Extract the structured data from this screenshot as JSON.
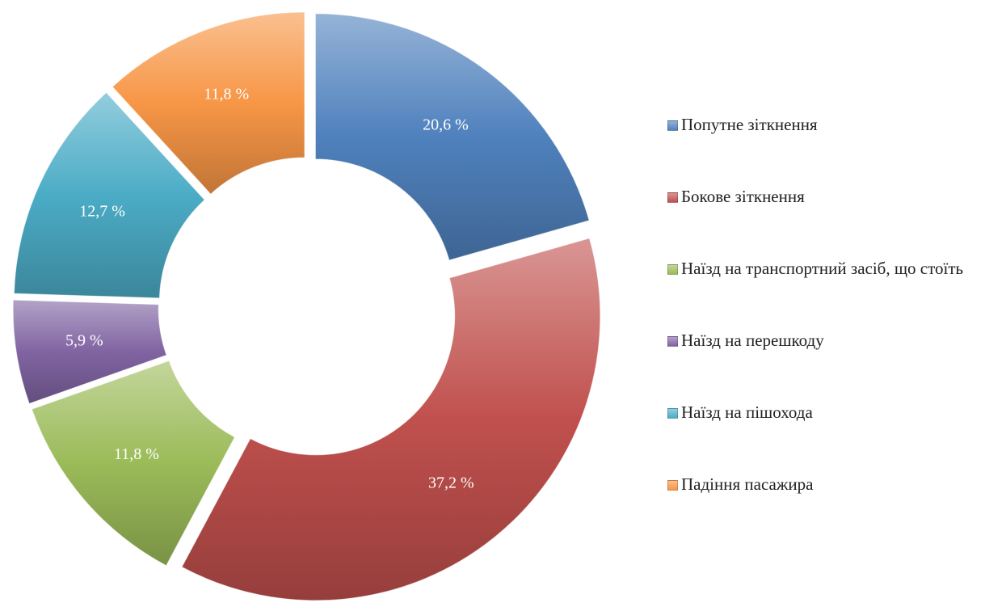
{
  "chart_data": {
    "type": "donut",
    "categories": [
      "Попутне зіткнення",
      "Бокове зіткнення",
      "Наїзд на транспортний засіб, що стоїть",
      "Наїзд на перешкоду",
      "Наїзд на пішохода",
      "Падіння пасажира"
    ],
    "values": [
      20.6,
      37.2,
      11.8,
      5.9,
      12.7,
      11.8
    ],
    "value_labels": [
      "20,6 %",
      "37,2 %",
      "11,8 %",
      "5,9 %",
      "12,7 %",
      "11,8 %"
    ],
    "colors": [
      "#4f81bd",
      "#c0504d",
      "#9bbb59",
      "#8064a2",
      "#4bacc6",
      "#f79646"
    ],
    "legend": "right"
  }
}
